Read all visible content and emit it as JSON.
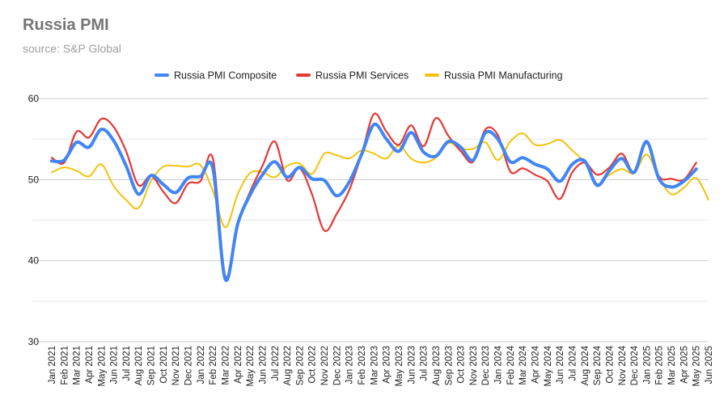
{
  "chart_data": {
    "type": "line",
    "title": "Russia PMI",
    "subtitle": "source: S&P Global",
    "ylim": [
      30,
      60
    ],
    "yticks": [
      30,
      40,
      50,
      60
    ],
    "grid": true,
    "legend_position": "top",
    "x": [
      "Jan 2021",
      "Feb 2021",
      "Mar 2021",
      "Apr 2021",
      "May 2021",
      "Jun 2021",
      "Jul 2021",
      "Aug 2021",
      "Sep 2021",
      "Oct 2021",
      "Nov 2021",
      "Dec 2021",
      "Jan 2022",
      "Feb 2022",
      "Mar 2022",
      "Apr 2022",
      "May 2022",
      "Jun 2022",
      "Jul 2022",
      "Aug 2022",
      "Sep 2022",
      "Oct 2022",
      "Nov 2022",
      "Dec 2022",
      "Jan 2023",
      "Feb 2023",
      "Mar 2023",
      "Apr 2023",
      "May 2023",
      "Jun 2023",
      "Jul 2023",
      "Aug 2023",
      "Sep 2023",
      "Oct 2023",
      "Nov 2023",
      "Dec 2023",
      "Jan 2024",
      "Feb 2024",
      "Mar 2024",
      "Apr 2024",
      "May 2024",
      "Jun 2024",
      "Jul 2024",
      "Aug 2024",
      "Sep 2024",
      "Oct 2024",
      "Nov 2024",
      "Dec 2024",
      "Jan 2025",
      "Feb 2025",
      "Mar 2025",
      "Apr 2025",
      "May 2025",
      "Jun 2025"
    ],
    "series": [
      {
        "name": "Russia PMI Composite",
        "color": "#4285f4",
        "values": [
          52.3,
          52.4,
          54.6,
          54.0,
          56.2,
          54.8,
          51.7,
          48.2,
          50.5,
          49.4,
          48.4,
          50.2,
          50.4,
          51.4,
          37.7,
          44.5,
          48.1,
          50.6,
          52.2,
          50.3,
          51.5,
          50.1,
          49.9,
          48.0,
          49.7,
          53.1,
          56.8,
          55.0,
          53.5,
          55.8,
          53.4,
          52.9,
          54.7,
          54.0,
          52.4,
          55.8,
          55.0,
          52.2,
          52.7,
          51.9,
          51.3,
          49.8,
          51.9,
          52.3,
          49.3,
          51.1,
          52.6,
          50.9,
          54.7,
          50.1,
          49.1,
          49.8,
          51.3,
          null
        ]
      },
      {
        "name": "Russia PMI Services",
        "color": "#e53935",
        "values": [
          52.7,
          52.1,
          55.9,
          55.2,
          57.5,
          56.5,
          53.5,
          49.3,
          50.5,
          48.5,
          47.1,
          49.5,
          49.8,
          52.6,
          38.1,
          44.5,
          48.5,
          51.7,
          54.7,
          49.9,
          51.4,
          48.2,
          43.7,
          45.8,
          48.7,
          53.1,
          58.1,
          55.9,
          54.3,
          56.7,
          54.1,
          57.6,
          55.4,
          53.5,
          52.2,
          56.2,
          55.5,
          51.0,
          51.4,
          50.6,
          49.8,
          47.6,
          50.9,
          52.1,
          50.6,
          51.5,
          53.2,
          50.9,
          54.5,
          50.4,
          50.1,
          50.0,
          52.1,
          null
        ]
      },
      {
        "name": "Russia PMI Manufacturing",
        "color": "#f4c20d",
        "values": [
          50.9,
          51.5,
          51.1,
          50.4,
          51.9,
          49.2,
          47.5,
          46.5,
          49.8,
          51.6,
          51.7,
          51.6,
          51.8,
          48.6,
          44.1,
          48.2,
          50.8,
          50.9,
          50.3,
          51.7,
          52.0,
          50.7,
          53.2,
          53.0,
          52.6,
          53.6,
          53.2,
          52.6,
          54.2,
          52.6,
          52.1,
          52.7,
          54.5,
          53.8,
          53.8,
          54.6,
          52.4,
          54.7,
          55.7,
          54.3,
          54.4,
          54.9,
          53.6,
          52.1,
          49.5,
          50.6,
          51.3,
          50.8,
          53.1,
          50.2,
          48.2,
          49.0,
          50.2,
          47.5
        ]
      }
    ]
  }
}
